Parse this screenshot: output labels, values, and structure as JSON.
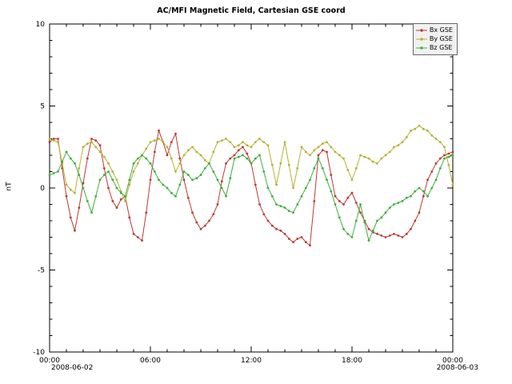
{
  "chart_data": {
    "type": "line",
    "title": "AC/MFI Magnetic Field, Cartesian GSE coord",
    "ylabel": "nT",
    "ylim": [
      -10,
      10
    ],
    "y_major_ticks": [
      -10,
      -5,
      0,
      5,
      10
    ],
    "y_minor_step": 1,
    "x_hours_range": [
      0,
      24
    ],
    "x_step_hours": 0.25,
    "x_minor_tick_hours": 1,
    "x_major_tick_hours": 6,
    "x_major_tick_labels": [
      "00:00",
      "06:00",
      "12:00",
      "18:00",
      "00:00"
    ],
    "x_start_date": "2008-06-02",
    "x_end_date": "2008-06-03",
    "legend_position": "top-right",
    "grid": false,
    "series": [
      {
        "name": "Bx GSE",
        "color": "#bb3b33",
        "values": [
          2.8,
          3.0,
          3.0,
          1.2,
          -0.5,
          -1.8,
          -2.6,
          -1.2,
          0.3,
          1.8,
          3.0,
          2.9,
          2.6,
          1.2,
          0.0,
          -0.8,
          -1.2,
          -0.7,
          -0.5,
          -1.8,
          -2.8,
          -3.0,
          -3.2,
          -1.5,
          0.5,
          2.2,
          3.5,
          2.8,
          2.0,
          2.8,
          3.3,
          1.8,
          0.5,
          -0.6,
          -1.5,
          -2.1,
          -2.5,
          -2.3,
          -2.0,
          -1.6,
          -1.0,
          0.4,
          1.5,
          1.8,
          2.0,
          2.3,
          2.5,
          2.1,
          1.5,
          0.2,
          -1.0,
          -1.6,
          -2.0,
          -2.3,
          -2.5,
          -2.6,
          -2.8,
          -3.1,
          -3.3,
          -3.1,
          -3.0,
          -3.3,
          -3.5,
          -0.8,
          2.0,
          2.3,
          2.2,
          0.8,
          -0.5,
          -0.8,
          -1.0,
          -0.6,
          -0.3,
          -0.9,
          -1.5,
          -2.0,
          -2.5,
          -2.7,
          -2.8,
          -2.9,
          -3.0,
          -2.9,
          -2.8,
          -2.9,
          -3.0,
          -2.8,
          -2.5,
          -2.0,
          -1.5,
          -0.5,
          0.5,
          1.0,
          1.5,
          1.8,
          2.0,
          2.1,
          2.2
        ]
      },
      {
        "name": "By GSE",
        "color": "#b5b236",
        "values": [
          3.0,
          2.9,
          2.8,
          1.5,
          0.2,
          -0.1,
          -0.3,
          1.2,
          2.5,
          2.7,
          2.8,
          2.5,
          2.2,
          1.9,
          1.5,
          1.0,
          0.5,
          -0.2,
          -0.8,
          0.2,
          1.0,
          1.5,
          2.0,
          2.4,
          2.8,
          2.9,
          3.0,
          2.8,
          2.5,
          1.8,
          1.0,
          1.5,
          2.0,
          2.3,
          2.5,
          2.2,
          2.0,
          1.7,
          1.5,
          2.2,
          2.8,
          2.9,
          3.0,
          2.8,
          2.5,
          2.6,
          2.8,
          2.6,
          2.5,
          2.8,
          3.0,
          2.8,
          2.6,
          1.4,
          0.2,
          1.5,
          2.8,
          1.4,
          0.0,
          1.2,
          2.5,
          2.2,
          2.0,
          2.3,
          2.5,
          2.7,
          2.8,
          2.5,
          2.2,
          2.0,
          1.8,
          1.1,
          0.5,
          1.2,
          2.0,
          1.9,
          1.8,
          1.6,
          1.5,
          1.8,
          2.0,
          2.2,
          2.5,
          2.6,
          2.8,
          3.1,
          3.5,
          3.6,
          3.8,
          3.6,
          3.5,
          3.2,
          3.0,
          2.8,
          2.5,
          1.4,
          0.2
        ]
      },
      {
        "name": "Bz GSE",
        "color": "#3fae3f",
        "values": [
          0.8,
          0.9,
          1.0,
          1.6,
          2.2,
          1.8,
          1.5,
          0.8,
          0.0,
          -0.8,
          -1.5,
          -0.5,
          0.5,
          0.8,
          1.0,
          0.5,
          0.0,
          -0.3,
          -0.5,
          0.5,
          1.5,
          1.8,
          2.0,
          1.8,
          1.5,
          1.0,
          0.5,
          0.2,
          0.0,
          -0.3,
          -0.5,
          0.2,
          1.0,
          0.8,
          0.5,
          0.6,
          0.8,
          1.2,
          1.5,
          1.0,
          0.5,
          0.0,
          -0.5,
          0.6,
          1.8,
          1.9,
          2.0,
          1.8,
          1.5,
          1.8,
          2.0,
          1.0,
          0.0,
          -0.5,
          -1.0,
          -1.1,
          -1.2,
          -1.4,
          -1.5,
          -1.0,
          -0.5,
          0.0,
          0.5,
          1.2,
          1.8,
          1.2,
          0.5,
          -0.2,
          -1.0,
          -1.8,
          -2.5,
          -2.8,
          -3.0,
          -2.0,
          -1.0,
          -2.1,
          -3.2,
          -2.6,
          -2.0,
          -1.8,
          -1.5,
          -1.2,
          -1.0,
          -0.9,
          -0.8,
          -0.6,
          -0.5,
          -0.2,
          0.0,
          -0.2,
          -0.5,
          0.0,
          0.5,
          1.2,
          1.8,
          1.9,
          2.0
        ]
      }
    ]
  }
}
